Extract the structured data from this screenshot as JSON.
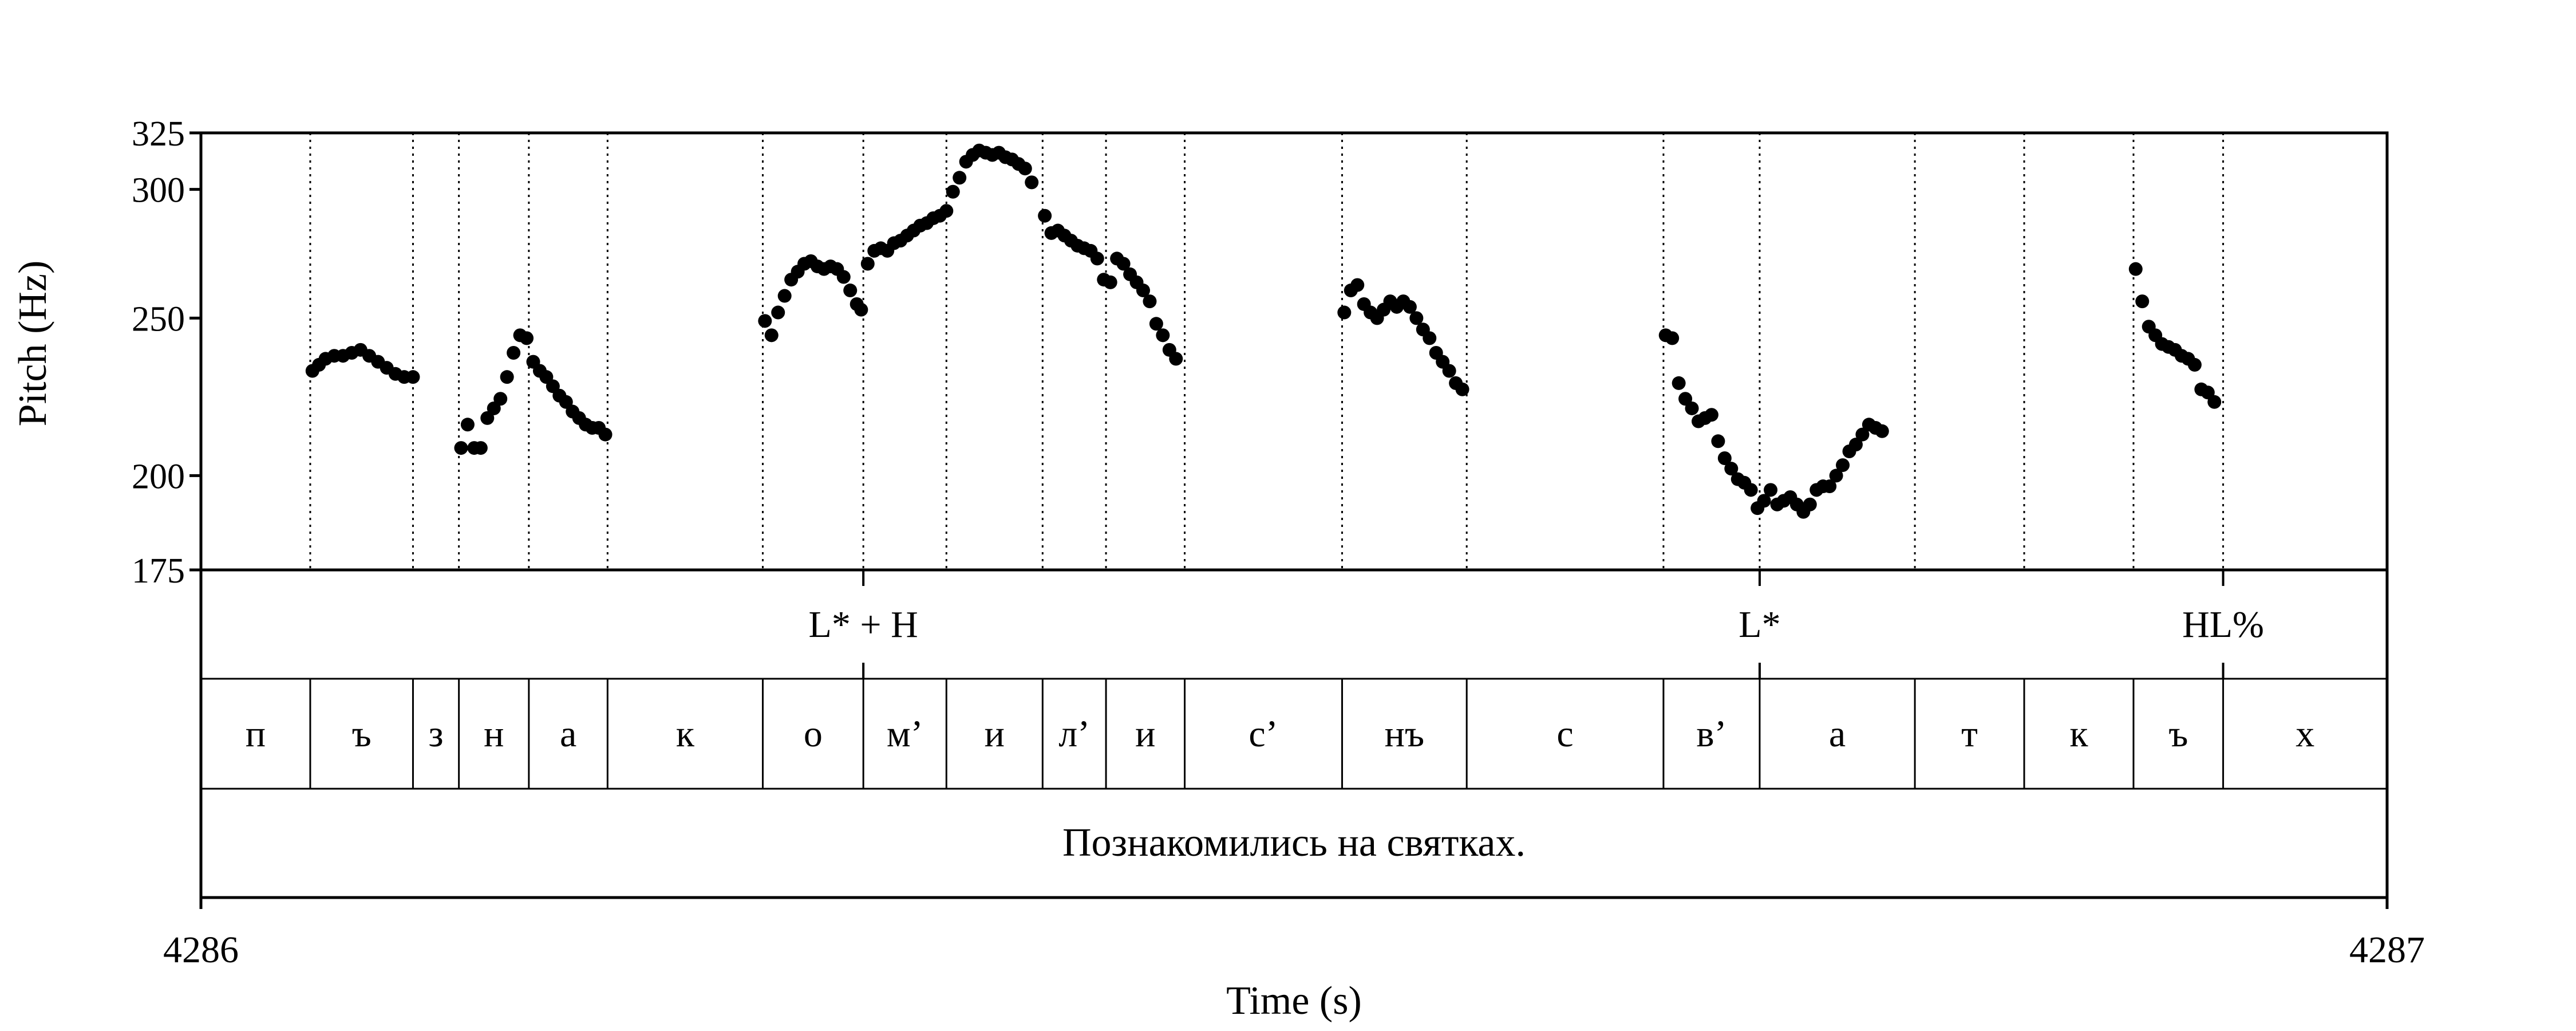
{
  "chart_data": {
    "type": "scatter",
    "xlabel": "Time (s)",
    "ylabel": "Pitch (Hz)",
    "xlim": [
      4286,
      4287
    ],
    "ylim": [
      175,
      325
    ],
    "x_ticks": [
      "4286",
      "4287"
    ],
    "y_ticks": [
      {
        "value": 175,
        "label": "175"
      },
      {
        "value": 200,
        "label": "200"
      },
      {
        "value": 250,
        "label": "250"
      },
      {
        "value": 300,
        "label": "300"
      },
      {
        "value": 325,
        "label": "325"
      }
    ],
    "segment_boundaries": [
      4286.05,
      4286.097,
      4286.118,
      4286.15,
      4286.186,
      4286.257,
      4286.303,
      4286.341,
      4286.385,
      4286.414,
      4286.45,
      4286.522,
      4286.579,
      4286.669,
      4286.713,
      4286.784,
      4286.834,
      4286.884,
      4286.925
    ],
    "tones": [
      {
        "label": "L* + H",
        "time": 4286.303
      },
      {
        "label": "L*",
        "time": 4286.713
      },
      {
        "label": "HL%",
        "time": 4286.925
      }
    ],
    "segments": [
      {
        "label": "п",
        "start": 4286.0,
        "end": 4286.05
      },
      {
        "label": "ъ",
        "start": 4286.05,
        "end": 4286.097
      },
      {
        "label": "з",
        "start": 4286.097,
        "end": 4286.118
      },
      {
        "label": "н",
        "start": 4286.118,
        "end": 4286.15
      },
      {
        "label": "а",
        "start": 4286.15,
        "end": 4286.186
      },
      {
        "label": "к",
        "start": 4286.186,
        "end": 4286.257
      },
      {
        "label": "о",
        "start": 4286.257,
        "end": 4286.303
      },
      {
        "label": "м’",
        "start": 4286.303,
        "end": 4286.341
      },
      {
        "label": "и",
        "start": 4286.341,
        "end": 4286.385
      },
      {
        "label": "л’",
        "start": 4286.385,
        "end": 4286.414
      },
      {
        "label": "и",
        "start": 4286.414,
        "end": 4286.45
      },
      {
        "label": "с’",
        "start": 4286.45,
        "end": 4286.522
      },
      {
        "label": "нъ",
        "start": 4286.522,
        "end": 4286.579
      },
      {
        "label": "с",
        "start": 4286.579,
        "end": 4286.669
      },
      {
        "label": "в’",
        "start": 4286.669,
        "end": 4286.713
      },
      {
        "label": "а",
        "start": 4286.713,
        "end": 4286.784
      },
      {
        "label": "т",
        "start": 4286.784,
        "end": 4286.834
      },
      {
        "label": "к",
        "start": 4286.834,
        "end": 4286.884
      },
      {
        "label": "ъ",
        "start": 4286.884,
        "end": 4286.925
      },
      {
        "label": "х",
        "start": 4286.925,
        "end": 4287.0
      }
    ],
    "sentence": "Познакомились на святках.",
    "pitch_track": [
      [
        4286.051,
        232
      ],
      [
        4286.054,
        234
      ],
      [
        4286.057,
        236
      ],
      [
        4286.061,
        237
      ],
      [
        4286.065,
        237
      ],
      [
        4286.069,
        238
      ],
      [
        4286.073,
        239
      ],
      [
        4286.077,
        237
      ],
      [
        4286.081,
        235
      ],
      [
        4286.085,
        233
      ],
      [
        4286.089,
        231
      ],
      [
        4286.093,
        230
      ],
      [
        4286.097,
        230
      ],
      [
        4286.119,
        208
      ],
      [
        4286.122,
        215
      ],
      [
        4286.125,
        208
      ],
      [
        4286.128,
        208
      ],
      [
        4286.131,
        217
      ],
      [
        4286.134,
        220
      ],
      [
        4286.137,
        223
      ],
      [
        4286.14,
        230
      ],
      [
        4286.143,
        238
      ],
      [
        4286.146,
        244
      ],
      [
        4286.149,
        243
      ],
      [
        4286.152,
        235
      ],
      [
        4286.155,
        232
      ],
      [
        4286.158,
        230
      ],
      [
        4286.161,
        227
      ],
      [
        4286.164,
        224
      ],
      [
        4286.167,
        222
      ],
      [
        4286.17,
        219
      ],
      [
        4286.173,
        217
      ],
      [
        4286.176,
        215
      ],
      [
        4286.179,
        214
      ],
      [
        4286.182,
        214
      ],
      [
        4286.185,
        212
      ],
      [
        4286.258,
        249
      ],
      [
        4286.261,
        244
      ],
      [
        4286.264,
        252
      ],
      [
        4286.267,
        258
      ],
      [
        4286.27,
        264
      ],
      [
        4286.273,
        267
      ],
      [
        4286.276,
        270
      ],
      [
        4286.279,
        271
      ],
      [
        4286.282,
        269
      ],
      [
        4286.285,
        268
      ],
      [
        4286.288,
        269
      ],
      [
        4286.291,
        268
      ],
      [
        4286.294,
        265
      ],
      [
        4286.297,
        260
      ],
      [
        4286.3,
        255
      ],
      [
        4286.302,
        253
      ],
      [
        4286.305,
        270
      ],
      [
        4286.308,
        275
      ],
      [
        4286.311,
        276
      ],
      [
        4286.314,
        275
      ],
      [
        4286.317,
        278
      ],
      [
        4286.32,
        279
      ],
      [
        4286.323,
        281
      ],
      [
        4286.326,
        283
      ],
      [
        4286.329,
        285
      ],
      [
        4286.332,
        286
      ],
      [
        4286.335,
        288
      ],
      [
        4286.338,
        289
      ],
      [
        4286.341,
        291
      ],
      [
        4286.344,
        299
      ],
      [
        4286.347,
        305
      ],
      [
        4286.35,
        312
      ],
      [
        4286.353,
        315
      ],
      [
        4286.356,
        317
      ],
      [
        4286.359,
        316
      ],
      [
        4286.362,
        315
      ],
      [
        4286.365,
        316
      ],
      [
        4286.368,
        314
      ],
      [
        4286.371,
        313
      ],
      [
        4286.374,
        311
      ],
      [
        4286.377,
        309
      ],
      [
        4286.38,
        303
      ],
      [
        4286.386,
        289
      ],
      [
        4286.389,
        282
      ],
      [
        4286.392,
        283
      ],
      [
        4286.395,
        281
      ],
      [
        4286.398,
        279
      ],
      [
        4286.401,
        277
      ],
      [
        4286.404,
        276
      ],
      [
        4286.407,
        275
      ],
      [
        4286.41,
        272
      ],
      [
        4286.413,
        264
      ],
      [
        4286.416,
        263
      ],
      [
        4286.419,
        272
      ],
      [
        4286.422,
        270
      ],
      [
        4286.425,
        266
      ],
      [
        4286.428,
        263
      ],
      [
        4286.431,
        260
      ],
      [
        4286.434,
        256
      ],
      [
        4286.437,
        248
      ],
      [
        4286.44,
        244
      ],
      [
        4286.443,
        239
      ],
      [
        4286.446,
        236
      ],
      [
        4286.523,
        252
      ],
      [
        4286.526,
        260
      ],
      [
        4286.529,
        262
      ],
      [
        4286.532,
        255
      ],
      [
        4286.535,
        252
      ],
      [
        4286.538,
        250
      ],
      [
        4286.541,
        253
      ],
      [
        4286.544,
        256
      ],
      [
        4286.547,
        254
      ],
      [
        4286.55,
        256
      ],
      [
        4286.553,
        254
      ],
      [
        4286.556,
        250
      ],
      [
        4286.559,
        246
      ],
      [
        4286.562,
        243
      ],
      [
        4286.565,
        238
      ],
      [
        4286.568,
        235
      ],
      [
        4286.571,
        232
      ],
      [
        4286.574,
        228
      ],
      [
        4286.577,
        226
      ],
      [
        4286.67,
        244
      ],
      [
        4286.673,
        243
      ],
      [
        4286.676,
        228
      ],
      [
        4286.679,
        223
      ],
      [
        4286.682,
        220
      ],
      [
        4286.685,
        216
      ],
      [
        4286.688,
        217
      ],
      [
        4286.691,
        218
      ],
      [
        4286.694,
        210
      ],
      [
        4286.697,
        205
      ],
      [
        4286.7,
        202
      ],
      [
        4286.703,
        199
      ],
      [
        4286.706,
        198
      ],
      [
        4286.709,
        196
      ],
      [
        4286.712,
        191
      ],
      [
        4286.715,
        193
      ],
      [
        4286.718,
        196
      ],
      [
        4286.721,
        192
      ],
      [
        4286.724,
        193
      ],
      [
        4286.727,
        194
      ],
      [
        4286.73,
        192
      ],
      [
        4286.733,
        190
      ],
      [
        4286.736,
        192
      ],
      [
        4286.739,
        196
      ],
      [
        4286.742,
        197
      ],
      [
        4286.745,
        197
      ],
      [
        4286.748,
        200
      ],
      [
        4286.751,
        203
      ],
      [
        4286.754,
        207
      ],
      [
        4286.757,
        209
      ],
      [
        4286.76,
        212
      ],
      [
        4286.763,
        215
      ],
      [
        4286.766,
        214
      ],
      [
        4286.769,
        213
      ],
      [
        4286.885,
        268
      ],
      [
        4286.888,
        256
      ],
      [
        4286.891,
        247
      ],
      [
        4286.894,
        244
      ],
      [
        4286.897,
        241
      ],
      [
        4286.9,
        240
      ],
      [
        4286.903,
        239
      ],
      [
        4286.906,
        237
      ],
      [
        4286.909,
        236
      ],
      [
        4286.912,
        234
      ],
      [
        4286.915,
        226
      ],
      [
        4286.918,
        225
      ],
      [
        4286.921,
        222
      ]
    ]
  }
}
